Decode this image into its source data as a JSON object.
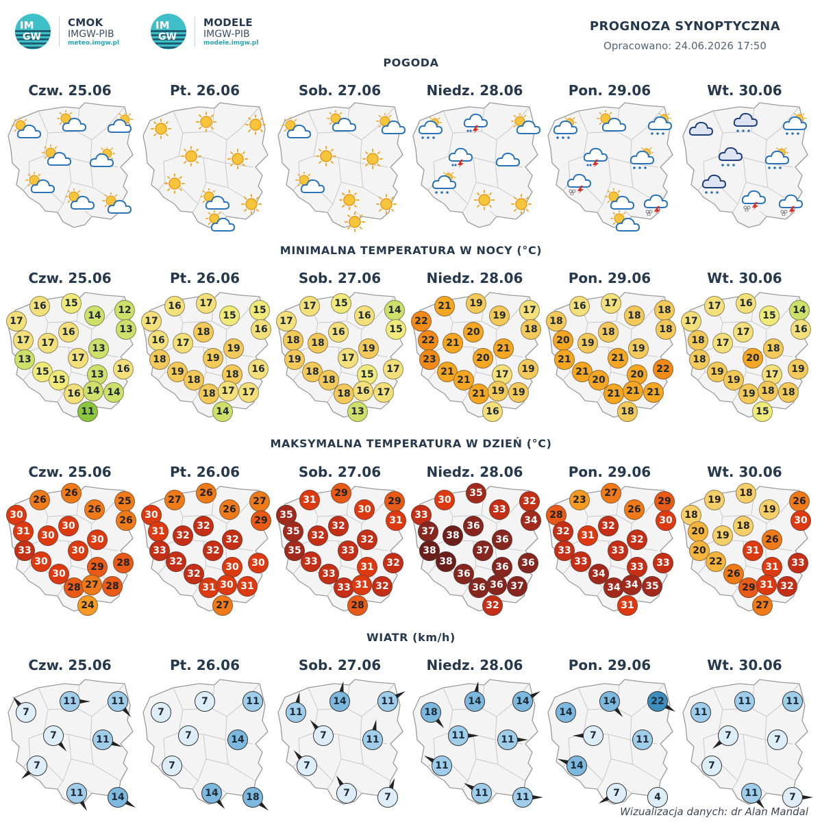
{
  "header": {
    "logos": [
      {
        "badge_top": "IM",
        "badge_bottom": "GW",
        "name": "CMOK",
        "org": "IMGW-PIB",
        "url": "meteo.imgw.pl"
      },
      {
        "badge_top": "IM",
        "badge_bottom": "GW",
        "name": "MODELE",
        "org": "IMGW-PIB",
        "url": "modele.imgw.pl"
      }
    ],
    "title": "PROGNOZA SYNOPTYCZNA",
    "issued": "Opracowano: 24.06.2026 17:50"
  },
  "days": [
    "Czw. 25.06",
    "Pt. 26.06",
    "Sob. 27.06",
    "Niedz. 28.06",
    "Pon. 29.06",
    "Wt. 30.06"
  ],
  "sections": {
    "weather": "POGODA",
    "tmin": "MINIMALNA TEMPERATURA W NOCY (°C)",
    "tmax": "MAKSYMALNA TEMPERATURA W DZIEŃ (°C)",
    "wind": "WIATR (km/h)"
  },
  "weather": [
    [
      "sun-cloud",
      "sun-cloud",
      "cloud-sun",
      "sun-cloud",
      "cloud-sun",
      "sun-cloud",
      "sun-cloud",
      "sun-cloud"
    ],
    [
      "sun",
      "sun",
      "sun",
      "sun",
      "sun",
      "sun",
      "sun-cloud",
      "sun",
      "sun-cloud"
    ],
    [
      "sun-cloud",
      "sun-cloud",
      "sun-cloud",
      "sun",
      "sun",
      "sun-cloud",
      "sun",
      "sun",
      "sun"
    ],
    [
      "rain-cloud",
      "storm-cloud",
      "sun-cloud",
      "storm-cloud",
      "cloud",
      "rain-cloud",
      "sun",
      "sun"
    ],
    [
      "rain-cloud",
      "sun-cloud",
      "rain-cloud",
      "storm-cloud",
      "rain-cloud",
      "hail-storm",
      "sun-cloud",
      "hail-storm",
      "sun-cloud"
    ],
    [
      "dark-cloud",
      "dark-rain-cloud",
      "rain-cloud",
      "dark-rain-cloud",
      "rain-cloud",
      "dark-rain-cloud",
      "hail-storm",
      "hail-storm"
    ]
  ],
  "tmin": [
    [
      17,
      16,
      15,
      14,
      12,
      13,
      17,
      17,
      16,
      13,
      13,
      17,
      15,
      13,
      16,
      15,
      16,
      14,
      14,
      11
    ],
    [
      17,
      16,
      17,
      15,
      15,
      16,
      16,
      17,
      18,
      18,
      19,
      19,
      19,
      18,
      16,
      18,
      18,
      17,
      17,
      14
    ],
    [
      17,
      17,
      15,
      16,
      14,
      15,
      18,
      18,
      16,
      19,
      19,
      17,
      18,
      15,
      17,
      18,
      18,
      16,
      17,
      13
    ],
    [
      22,
      21,
      19,
      19,
      17,
      18,
      22,
      21,
      20,
      23,
      21,
      20,
      21,
      17,
      19,
      21,
      21,
      19,
      19,
      16
    ],
    [
      18,
      16,
      17,
      18,
      18,
      18,
      20,
      19,
      18,
      21,
      19,
      21,
      21,
      20,
      22,
      20,
      21,
      21,
      21,
      18
    ],
    [
      17,
      17,
      16,
      15,
      14,
      16,
      18,
      17,
      17,
      18,
      18,
      20,
      19,
      17,
      19,
      19,
      19,
      18,
      18,
      15
    ]
  ],
  "tmax": [
    [
      30,
      26,
      26,
      26,
      25,
      26,
      31,
      30,
      30,
      33,
      30,
      30,
      30,
      29,
      28,
      30,
      28,
      27,
      28,
      24
    ],
    [
      30,
      27,
      26,
      26,
      27,
      29,
      31,
      32,
      32,
      33,
      32,
      32,
      32,
      30,
      30,
      32,
      31,
      30,
      31,
      27
    ],
    [
      35,
      31,
      29,
      30,
      29,
      31,
      35,
      32,
      32,
      35,
      32,
      33,
      33,
      31,
      32,
      33,
      33,
      31,
      32,
      28
    ],
    [
      33,
      30,
      35,
      33,
      32,
      34,
      37,
      38,
      36,
      38,
      36,
      37,
      38,
      36,
      36,
      36,
      36,
      36,
      37,
      32
    ],
    [
      28,
      23,
      27,
      26,
      29,
      30,
      32,
      31,
      32,
      33,
      32,
      33,
      33,
      33,
      33,
      34,
      34,
      34,
      35,
      31
    ],
    [
      18,
      19,
      18,
      19,
      26,
      30,
      20,
      19,
      18,
      20,
      26,
      31,
      22,
      31,
      33,
      26,
      29,
      31,
      32,
      27
    ]
  ],
  "wind": [
    [
      {
        "v": 7,
        "d": 320
      },
      {
        "v": 11,
        "d": 90
      },
      {
        "v": 11,
        "d": 140
      },
      {
        "v": 7,
        "d": 140
      },
      {
        "v": 11,
        "d": 110
      },
      {
        "v": 7,
        "d": 230
      },
      {
        "v": 11,
        "d": 150
      },
      {
        "v": 14,
        "d": 120
      }
    ],
    [
      {
        "v": 7,
        "d": null
      },
      {
        "v": 7,
        "d": null
      },
      {
        "v": 11,
        "d": null
      },
      {
        "v": 7,
        "d": null
      },
      {
        "v": 14,
        "d": null
      },
      {
        "v": 7,
        "d": null
      },
      {
        "v": 14,
        "d": 140
      },
      {
        "v": 18,
        "d": 130
      }
    ],
    [
      {
        "v": 11,
        "d": 10
      },
      {
        "v": 14,
        "d": 10
      },
      {
        "v": 11,
        "d": 60
      },
      {
        "v": 7,
        "d": 320
      },
      {
        "v": 11,
        "d": 10
      },
      {
        "v": 7,
        "d": 320
      },
      {
        "v": 7,
        "d": 330
      },
      {
        "v": 7,
        "d": 20
      }
    ],
    [
      {
        "v": 18,
        "d": 140
      },
      {
        "v": 14,
        "d": 10
      },
      {
        "v": 14,
        "d": 60
      },
      {
        "v": 11,
        "d": 90
      },
      {
        "v": 11,
        "d": 90
      },
      {
        "v": 11,
        "d": 300
      },
      {
        "v": 11,
        "d": 300
      },
      {
        "v": 11,
        "d": 90
      }
    ],
    [
      {
        "v": 14,
        "d": null
      },
      {
        "v": 14,
        "d": 140
      },
      {
        "v": 22,
        "d": 120
      },
      {
        "v": 7,
        "d": 270
      },
      {
        "v": 11,
        "d": null
      },
      {
        "v": 14,
        "d": 290
      },
      {
        "v": 7,
        "d": 240
      },
      {
        "v": 4,
        "d": null
      }
    ],
    [
      {
        "v": 11,
        "d": null
      },
      {
        "v": 11,
        "d": null
      },
      {
        "v": 11,
        "d": null
      },
      {
        "v": 7,
        "d": 230
      },
      {
        "v": 7,
        "d": null
      },
      {
        "v": 7,
        "d": null
      },
      {
        "v": 11,
        "d": 140
      },
      {
        "v": 7,
        "d": 90
      }
    ]
  ],
  "credit": "Wizualizacja danych: dr Alan Mandal"
}
